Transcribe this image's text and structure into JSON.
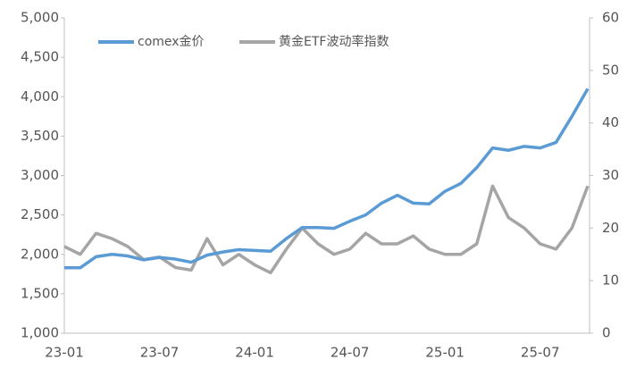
{
  "chart_data": {
    "type": "line",
    "x": [
      "23-01",
      "23-02",
      "23-03",
      "23-04",
      "23-05",
      "23-06",
      "23-07",
      "23-08",
      "23-09",
      "23-10",
      "23-11",
      "23-12",
      "24-01",
      "24-02",
      "24-03",
      "24-04",
      "24-05",
      "24-06",
      "24-07",
      "24-08",
      "24-09",
      "24-10",
      "24-11",
      "24-12",
      "25-01",
      "25-02",
      "25-03",
      "25-04",
      "25-05",
      "25-06",
      "25-07",
      "25-08",
      "25-09",
      "25-10"
    ],
    "series": [
      {
        "name": "comex金价",
        "color": "#5b9bd5",
        "values": [
          1830,
          1830,
          1970,
          2000,
          1980,
          1930,
          1960,
          1940,
          1900,
          1990,
          2030,
          2060,
          2050,
          2040,
          2200,
          2340,
          2340,
          2330,
          2420,
          2500,
          2650,
          2750,
          2650,
          2640,
          2800,
          2900,
          3100,
          3350,
          3320,
          3370,
          3350,
          3420,
          3750,
          4100
        ]
      },
      {
        "name": "黄金ETF波动率指数",
        "color": "#a5a5a5",
        "axis": "y2",
        "values": [
          16.5,
          15,
          19,
          18,
          16.5,
          14,
          14.5,
          12.5,
          12,
          18,
          13,
          15,
          13,
          11.5,
          16,
          20,
          17,
          15,
          16,
          19,
          17,
          17,
          18.5,
          16,
          15,
          15,
          17,
          28,
          22,
          20,
          17,
          16,
          20,
          28
        ]
      }
    ],
    "xticks": [
      "23-01",
      "23-07",
      "24-01",
      "24-07",
      "25-01",
      "25-07"
    ],
    "ylim": [
      1000,
      5000
    ],
    "yticks": [
      {
        "value": 1000,
        "label": "1,000"
      },
      {
        "value": 1500,
        "label": "1,500"
      },
      {
        "value": 2000,
        "label": "2,000"
      },
      {
        "value": 2500,
        "label": "2,500"
      },
      {
        "value": 3000,
        "label": "3,000"
      },
      {
        "value": 3500,
        "label": "3,500"
      },
      {
        "value": 4000,
        "label": "4,000"
      },
      {
        "value": 4500,
        "label": "4,500"
      },
      {
        "value": 5000,
        "label": "5,000"
      }
    ],
    "y2lim": [
      0,
      60
    ],
    "y2ticks": [
      0,
      10,
      20,
      30,
      40,
      50,
      60
    ],
    "legend": "top"
  }
}
